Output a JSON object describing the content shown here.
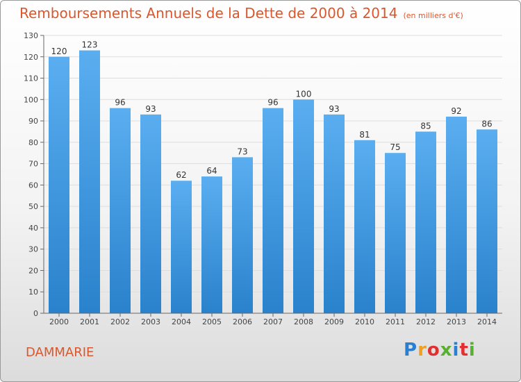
{
  "header": {
    "title": "Remboursements Annuels de la Dette de 2000 à 2014",
    "unit": "(en milliers d'€)"
  },
  "footer": {
    "city": "DAMMARIE",
    "logo_letters": [
      "P",
      "r",
      "o",
      "x",
      "i",
      "t",
      "i"
    ]
  },
  "colors": {
    "title": "#d9572d",
    "bar_top": "#5aaef0",
    "bar_bottom": "#2a82cc",
    "grid": "#dddddd"
  },
  "chart_data": {
    "type": "bar",
    "title": "Remboursements Annuels de la Dette de 2000 à 2014",
    "xlabel": "",
    "ylabel": "",
    "ylim": [
      0,
      130
    ],
    "yticks": [
      0,
      10,
      20,
      30,
      40,
      50,
      60,
      70,
      80,
      90,
      100,
      110,
      120,
      130
    ],
    "grid": true,
    "categories": [
      "2000",
      "2001",
      "2002",
      "2003",
      "2004",
      "2005",
      "2006",
      "2007",
      "2008",
      "2009",
      "2010",
      "2011",
      "2012",
      "2013",
      "2014"
    ],
    "values": [
      120,
      123,
      96,
      93,
      62,
      64,
      73,
      96,
      100,
      93,
      81,
      75,
      85,
      92,
      86
    ]
  }
}
